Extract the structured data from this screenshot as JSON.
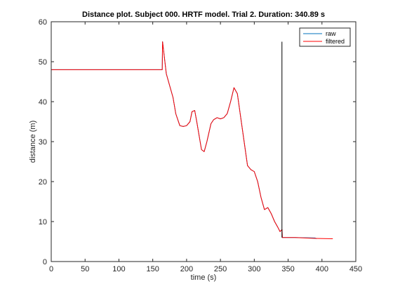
{
  "chart_data": {
    "type": "line",
    "title": "Distance plot. Subject 000. HRTF model. Trial 2. Duration: 340.89 s",
    "xlabel": "time (s)",
    "ylabel": "distance (m)",
    "xlim": [
      0,
      450
    ],
    "ylim": [
      0,
      60
    ],
    "x_ticks": [
      0,
      50,
      100,
      150,
      200,
      250,
      300,
      350,
      400,
      450
    ],
    "y_ticks": [
      0,
      10,
      20,
      30,
      40,
      50,
      60
    ],
    "grid": false,
    "legend_position": "top-right",
    "series": [
      {
        "name": "raw",
        "color": "#0072BD",
        "points": [
          [
            0,
            48
          ],
          [
            164,
            48
          ],
          [
            164.5,
            55
          ],
          [
            170,
            47
          ],
          [
            175,
            44
          ],
          [
            180,
            41
          ],
          [
            184,
            37
          ],
          [
            190,
            34
          ],
          [
            195,
            33.8
          ],
          [
            200,
            34
          ],
          [
            205,
            35
          ],
          [
            208,
            37.5
          ],
          [
            212,
            37.8
          ],
          [
            215,
            35
          ],
          [
            218,
            32
          ],
          [
            222,
            28
          ],
          [
            226,
            27.5
          ],
          [
            230,
            30
          ],
          [
            236,
            34.5
          ],
          [
            240,
            35.5
          ],
          [
            245,
            36
          ],
          [
            250,
            35.7
          ],
          [
            255,
            36
          ],
          [
            260,
            37
          ],
          [
            265,
            40
          ],
          [
            270,
            43.5
          ],
          [
            275,
            42
          ],
          [
            280,
            36
          ],
          [
            285,
            30
          ],
          [
            290,
            24
          ],
          [
            295,
            23
          ],
          [
            300,
            22.5
          ],
          [
            305,
            20
          ],
          [
            310,
            16
          ],
          [
            315,
            13
          ],
          [
            320,
            13.5
          ],
          [
            325,
            12
          ],
          [
            330,
            10
          ],
          [
            335,
            8.5
          ],
          [
            338,
            7.5
          ],
          [
            341,
            8
          ],
          [
            341.5,
            6
          ],
          [
            360,
            6
          ],
          [
            390,
            5.9
          ],
          [
            392,
            5.7
          ]
        ]
      },
      {
        "name": "filtered",
        "color": "#FF0000",
        "points": [
          [
            0,
            48
          ],
          [
            164,
            48
          ],
          [
            164.5,
            55
          ],
          [
            170,
            47
          ],
          [
            175,
            44
          ],
          [
            180,
            41
          ],
          [
            184,
            37
          ],
          [
            190,
            34
          ],
          [
            195,
            33.8
          ],
          [
            200,
            34
          ],
          [
            205,
            35
          ],
          [
            208,
            37.5
          ],
          [
            212,
            37.8
          ],
          [
            215,
            35
          ],
          [
            218,
            32
          ],
          [
            222,
            28
          ],
          [
            226,
            27.5
          ],
          [
            230,
            30
          ],
          [
            236,
            34.5
          ],
          [
            240,
            35.5
          ],
          [
            245,
            36
          ],
          [
            250,
            35.7
          ],
          [
            255,
            36
          ],
          [
            260,
            37
          ],
          [
            265,
            40
          ],
          [
            270,
            43.5
          ],
          [
            275,
            42
          ],
          [
            280,
            36
          ],
          [
            285,
            30
          ],
          [
            290,
            24
          ],
          [
            295,
            23
          ],
          [
            300,
            22.5
          ],
          [
            305,
            20
          ],
          [
            310,
            16
          ],
          [
            315,
            13
          ],
          [
            320,
            13.5
          ],
          [
            325,
            12
          ],
          [
            330,
            10
          ],
          [
            335,
            8.5
          ],
          [
            338,
            7.5
          ],
          [
            341,
            8
          ],
          [
            341.5,
            6
          ],
          [
            360,
            6
          ],
          [
            390,
            5.8
          ],
          [
            416,
            5.7
          ]
        ]
      }
    ],
    "annotations": [
      {
        "type": "vertical-line",
        "x": 340.89,
        "y_range": [
          6,
          55
        ],
        "color": "#000000"
      }
    ]
  }
}
